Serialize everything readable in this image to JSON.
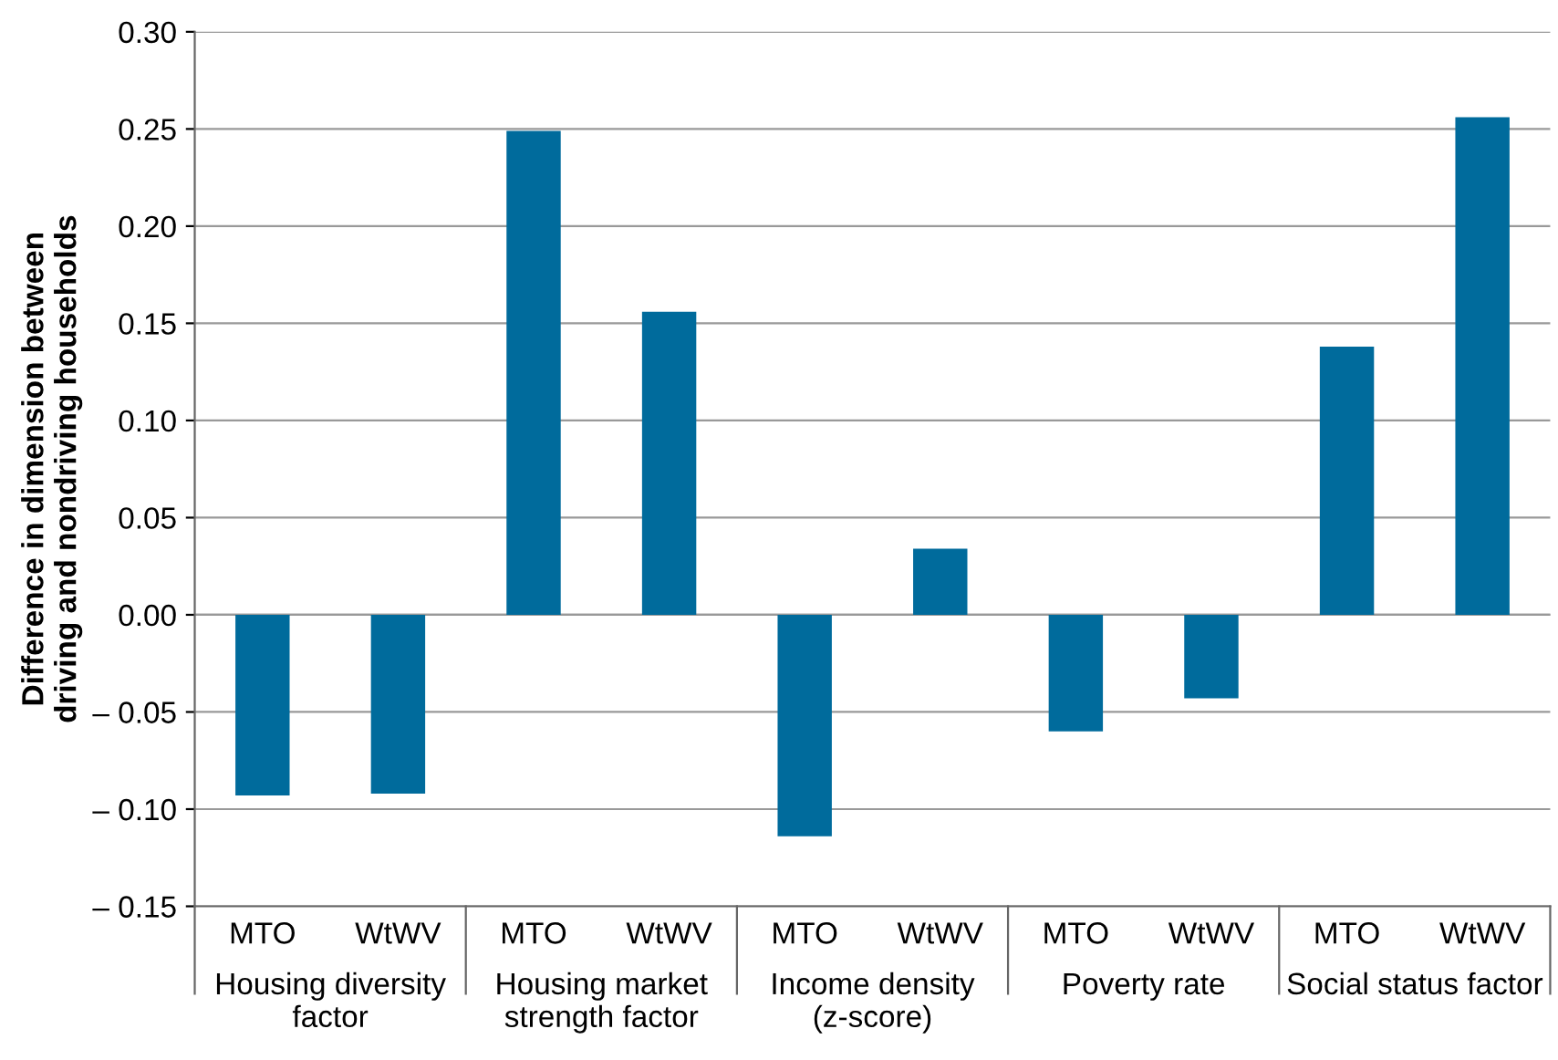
{
  "chart_data": {
    "type": "bar",
    "ylabel": "Difference in dimension between\ndriving and nondriving households",
    "categories": [
      "MTO",
      "WtWV",
      "MTO",
      "WtWV",
      "MTO",
      "WtWV",
      "MTO",
      "WtWV",
      "MTO",
      "WtWV"
    ],
    "values": [
      -0.093,
      -0.092,
      0.249,
      0.156,
      -0.114,
      0.034,
      -0.06,
      -0.043,
      0.138,
      0.256
    ],
    "color": "#006b9c",
    "annotations": [
      "Housing diversity\nfactor",
      "Housing market\nstrength factor",
      "Income density\n(z-score)",
      "Poverty rate",
      "Social status factor"
    ],
    "ylim": [
      -0.15,
      0.3
    ],
    "yticks": [
      {
        "value": -0.15,
        "label": "– 0.15"
      },
      {
        "value": -0.1,
        "label": "– 0.10"
      },
      {
        "value": -0.05,
        "label": "– 0.05"
      },
      {
        "value": 0,
        "label": "0.00"
      },
      {
        "value": 0.05,
        "label": "0.05"
      },
      {
        "value": 0.1,
        "label": "0.10"
      },
      {
        "value": 0.15,
        "label": "0.15"
      },
      {
        "value": 0.2,
        "label": "0.20"
      },
      {
        "value": 0.25,
        "label": "0.25"
      },
      {
        "value": 0.3,
        "label": "0.30"
      }
    ],
    "grid": "y"
  }
}
